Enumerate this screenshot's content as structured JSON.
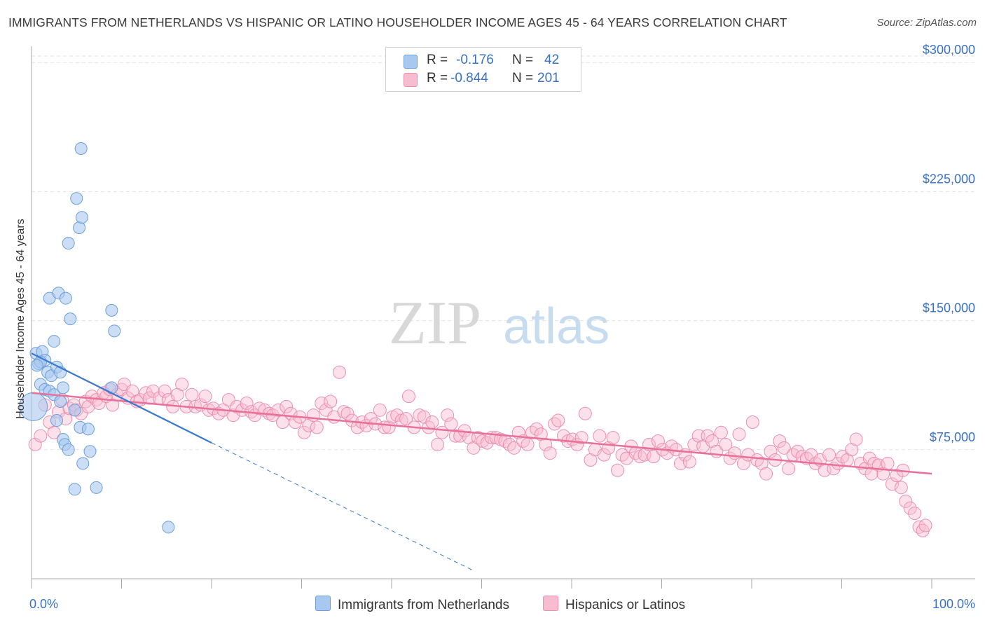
{
  "title": "IMMIGRANTS FROM NETHERLANDS VS HISPANIC OR LATINO HOUSEHOLDER INCOME AGES 45 - 64 YEARS CORRELATION CHART",
  "source": "Source: ZipAtlas.com",
  "watermark": {
    "zip": "ZIP",
    "atlas": "atlas"
  },
  "legend": {
    "rows": [
      {
        "r_label": "R =",
        "r_value": "-0.176",
        "n_label": "N =",
        "n_value": "42",
        "color": "#a8c8f0",
        "border": "#6a9fd8"
      },
      {
        "r_label": "R =",
        "r_value": "-0.844",
        "n_label": "N =",
        "n_value": "201",
        "color": "#f8bcd0",
        "border": "#e890ad"
      }
    ]
  },
  "bottom_legend": {
    "series1": "Immigrants from Netherlands",
    "series2": "Hispanics or Latinos"
  },
  "chart_data": {
    "type": "scatter",
    "title": "IMMIGRANTS FROM NETHERLANDS VS HISPANIC OR LATINO HOUSEHOLDER INCOME AGES 45 - 64 YEARS CORRELATION CHART",
    "xlabel": "",
    "ylabel": "Householder Income Ages 45 - 64 years",
    "xlim": [
      0,
      100
    ],
    "ylim": [
      0,
      307000
    ],
    "x_tick_labels": [
      "0.0%",
      "100.0%"
    ],
    "y_ticks": [
      75000,
      150000,
      225000,
      300000
    ],
    "y_tick_labels": [
      "$75,000",
      "$150,000",
      "$225,000",
      "$300,000"
    ],
    "grid": "horizontal dashed",
    "legend_position": "top-center",
    "series": [
      {
        "name": "Immigrants from Netherlands",
        "color": "#a8c8f0",
        "stroke": "#6a9fd8",
        "trend": {
          "x0": 0,
          "y0": 131000,
          "x1": 20,
          "y1": 79000,
          "dash_to_x": 49,
          "dash_to_y": 5000,
          "color": "#3a78d0"
        },
        "points": [
          [
            0.2,
            100000
          ],
          [
            0.5,
            131000
          ],
          [
            0.8,
            125000
          ],
          [
            1.2,
            132000
          ],
          [
            1.0,
            113000
          ],
          [
            1.5,
            127000
          ],
          [
            1.8,
            120000
          ],
          [
            2.0,
            163000
          ],
          [
            2.2,
            118000
          ],
          [
            2.5,
            138000
          ],
          [
            2.8,
            123000
          ],
          [
            3.0,
            166000
          ],
          [
            3.2,
            120000
          ],
          [
            1.5,
            110000
          ],
          [
            2.0,
            109000
          ],
          [
            2.5,
            107000
          ],
          [
            3.5,
            111000
          ],
          [
            3.8,
            163000
          ],
          [
            4.1,
            195000
          ],
          [
            4.3,
            151000
          ],
          [
            2.8,
            92000
          ],
          [
            3.5,
            81000
          ],
          [
            3.7,
            78000
          ],
          [
            4.1,
            75000
          ],
          [
            4.8,
            98000
          ],
          [
            5.0,
            221000
          ],
          [
            5.3,
            204000
          ],
          [
            5.6,
            210000
          ],
          [
            4.8,
            52000
          ],
          [
            5.7,
            67000
          ],
          [
            5.4,
            88000
          ],
          [
            6.3,
            87000
          ],
          [
            5.5,
            250000
          ],
          [
            6.5,
            74000
          ],
          [
            7.2,
            53000
          ],
          [
            8.9,
            156000
          ],
          [
            8.9,
            111000
          ],
          [
            9.2,
            144000
          ],
          [
            15.2,
            30000
          ],
          [
            3.2,
            103000
          ],
          [
            1.0,
            126000
          ],
          [
            0.6,
            124000
          ]
        ]
      },
      {
        "name": "Hispanics or Latinos",
        "color": "#f8bcd0",
        "stroke": "#e890ad",
        "trend": {
          "x0": 0,
          "y0": 108000,
          "x1": 100,
          "y1": 61000,
          "color": "#e8709a"
        },
        "points": [
          [
            0.4,
            78000
          ],
          [
            1.0,
            83000
          ],
          [
            1.5,
            101000
          ],
          [
            2.0,
            91000
          ],
          [
            2.5,
            85000
          ],
          [
            3.0,
            97000
          ],
          [
            3.4,
            104000
          ],
          [
            3.8,
            93000
          ],
          [
            4.2,
            99000
          ],
          [
            4.7,
            101000
          ],
          [
            5.0,
            98000
          ],
          [
            5.5,
            96000
          ],
          [
            6.0,
            103000
          ],
          [
            6.3,
            100000
          ],
          [
            6.7,
            106000
          ],
          [
            7.2,
            104000
          ],
          [
            7.5,
            102000
          ],
          [
            8.0,
            108000
          ],
          [
            8.3,
            106000
          ],
          [
            8.7,
            110000
          ],
          [
            9.0,
            101000
          ],
          [
            9.5,
            107000
          ],
          [
            10.0,
            110000
          ],
          [
            10.3,
            113000
          ],
          [
            10.7,
            105000
          ],
          [
            11.2,
            109000
          ],
          [
            11.7,
            103000
          ],
          [
            12.1,
            104000
          ],
          [
            12.7,
            108000
          ],
          [
            13.1,
            105000
          ],
          [
            13.5,
            109000
          ],
          [
            14.2,
            105000
          ],
          [
            14.8,
            109000
          ],
          [
            15.2,
            104000
          ],
          [
            15.7,
            100000
          ],
          [
            16.2,
            107000
          ],
          [
            16.7,
            113000
          ],
          [
            17.2,
            100000
          ],
          [
            17.8,
            107000
          ],
          [
            18.2,
            100000
          ],
          [
            18.8,
            101000
          ],
          [
            19.3,
            106000
          ],
          [
            19.7,
            98000
          ],
          [
            20.2,
            99000
          ],
          [
            20.8,
            96000
          ],
          [
            21.3,
            98000
          ],
          [
            21.9,
            104000
          ],
          [
            22.4,
            95000
          ],
          [
            22.8,
            100000
          ],
          [
            23.4,
            98000
          ],
          [
            23.9,
            102000
          ],
          [
            24.4,
            97000
          ],
          [
            24.8,
            95000
          ],
          [
            25.3,
            99000
          ],
          [
            25.9,
            98000
          ],
          [
            26.4,
            96000
          ],
          [
            26.8,
            95000
          ],
          [
            27.4,
            98000
          ],
          [
            27.9,
            91000
          ],
          [
            28.3,
            100000
          ],
          [
            28.8,
            96000
          ],
          [
            29.3,
            91000
          ],
          [
            29.8,
            94000
          ],
          [
            30.3,
            85000
          ],
          [
            30.8,
            89000
          ],
          [
            31.3,
            95000
          ],
          [
            31.7,
            88000
          ],
          [
            32.2,
            102000
          ],
          [
            32.7,
            98000
          ],
          [
            33.2,
            103000
          ],
          [
            33.6,
            94000
          ],
          [
            34.2,
            120000
          ],
          [
            34.7,
            97000
          ],
          [
            35.1,
            96000
          ],
          [
            35.6,
            92000
          ],
          [
            36.2,
            88000
          ],
          [
            36.7,
            91000
          ],
          [
            37.2,
            89000
          ],
          [
            37.7,
            93000
          ],
          [
            38.2,
            90000
          ],
          [
            38.7,
            98000
          ],
          [
            39.2,
            88000
          ],
          [
            39.7,
            88000
          ],
          [
            40.1,
            94000
          ],
          [
            40.6,
            95000
          ],
          [
            41.1,
            92000
          ],
          [
            41.6,
            93000
          ],
          [
            41.9,
            106000
          ],
          [
            42.5,
            88000
          ],
          [
            43.1,
            95000
          ],
          [
            43.6,
            94000
          ],
          [
            44.1,
            88000
          ],
          [
            44.5,
            91000
          ],
          [
            45.1,
            78000
          ],
          [
            45.6,
            85000
          ],
          [
            46.2,
            95000
          ],
          [
            46.6,
            90000
          ],
          [
            47.1,
            83000
          ],
          [
            47.6,
            83000
          ],
          [
            48.1,
            86000
          ],
          [
            48.6,
            82000
          ],
          [
            49.1,
            76000
          ],
          [
            49.6,
            82000
          ],
          [
            50.1,
            80000
          ],
          [
            50.6,
            79000
          ],
          [
            51.1,
            82000
          ],
          [
            51.6,
            82000
          ],
          [
            52.1,
            81000
          ],
          [
            52.6,
            80000
          ],
          [
            53.1,
            78000
          ],
          [
            53.6,
            76000
          ],
          [
            54.1,
            85000
          ],
          [
            54.6,
            80000
          ],
          [
            55.1,
            78000
          ],
          [
            55.6,
            85000
          ],
          [
            56.1,
            87000
          ],
          [
            56.6,
            84000
          ],
          [
            57.1,
            78000
          ],
          [
            57.6,
            73000
          ],
          [
            58.1,
            90000
          ],
          [
            58.5,
            92000
          ],
          [
            59.1,
            83000
          ],
          [
            59.6,
            80000
          ],
          [
            60.1,
            81000
          ],
          [
            60.6,
            78000
          ],
          [
            61.1,
            82000
          ],
          [
            61.5,
            96000
          ],
          [
            62.1,
            69000
          ],
          [
            62.6,
            75000
          ],
          [
            63.1,
            83000
          ],
          [
            63.6,
            72000
          ],
          [
            64.1,
            76000
          ],
          [
            64.6,
            82000
          ],
          [
            65.1,
            63000
          ],
          [
            65.6,
            72000
          ],
          [
            66.1,
            70000
          ],
          [
            66.6,
            77000
          ],
          [
            67.1,
            73000
          ],
          [
            67.6,
            71000
          ],
          [
            68.1,
            72000
          ],
          [
            68.6,
            78000
          ],
          [
            69.1,
            71000
          ],
          [
            69.6,
            80000
          ],
          [
            70.1,
            75000
          ],
          [
            70.6,
            73000
          ],
          [
            71.1,
            77000
          ],
          [
            71.6,
            75000
          ],
          [
            72.1,
            67000
          ],
          [
            72.6,
            72000
          ],
          [
            73.1,
            68000
          ],
          [
            73.6,
            78000
          ],
          [
            74.1,
            83000
          ],
          [
            74.6,
            77000
          ],
          [
            75.1,
            83000
          ],
          [
            75.6,
            80000
          ],
          [
            76.1,
            74000
          ],
          [
            76.6,
            85000
          ],
          [
            77.1,
            78000
          ],
          [
            77.6,
            70000
          ],
          [
            78.1,
            73000
          ],
          [
            78.6,
            84000
          ],
          [
            79.1,
            67000
          ],
          [
            79.6,
            72000
          ],
          [
            80.1,
            91000
          ],
          [
            80.6,
            69000
          ],
          [
            81.1,
            67000
          ],
          [
            81.6,
            61000
          ],
          [
            82.1,
            74000
          ],
          [
            82.6,
            69000
          ],
          [
            83.1,
            80000
          ],
          [
            83.6,
            76000
          ],
          [
            84.1,
            64000
          ],
          [
            84.6,
            72000
          ],
          [
            85.1,
            74000
          ],
          [
            85.6,
            71000
          ],
          [
            86.1,
            70000
          ],
          [
            86.6,
            72000
          ],
          [
            87.1,
            67000
          ],
          [
            87.6,
            69000
          ],
          [
            88.1,
            63000
          ],
          [
            88.6,
            72000
          ],
          [
            89.1,
            64000
          ],
          [
            89.6,
            67000
          ],
          [
            90.1,
            71000
          ],
          [
            90.6,
            69000
          ],
          [
            91.1,
            75000
          ],
          [
            91.6,
            81000
          ],
          [
            92.1,
            67000
          ],
          [
            92.6,
            64000
          ],
          [
            93.1,
            70000
          ],
          [
            93.6,
            67000
          ],
          [
            94.1,
            66000
          ],
          [
            94.6,
            61000
          ],
          [
            95.1,
            67000
          ],
          [
            95.6,
            55000
          ],
          [
            96.1,
            60000
          ],
          [
            96.6,
            53000
          ],
          [
            97.1,
            45000
          ],
          [
            97.6,
            41000
          ],
          [
            98.1,
            38000
          ],
          [
            98.6,
            30000
          ],
          [
            99.0,
            28000
          ],
          [
            99.3,
            31000
          ],
          [
            96.8,
            63000
          ],
          [
            93.3,
            61000
          ]
        ]
      }
    ]
  }
}
